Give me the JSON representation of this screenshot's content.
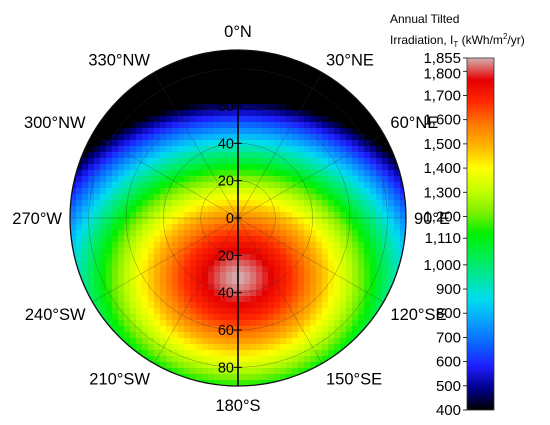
{
  "chart_data": {
    "type": "heatmap",
    "projection": "polar",
    "title": "",
    "colorbar": {
      "title_line1": "Annual Tilted",
      "title_line2_prefix": "Irradiation, I",
      "title_line2_sub": "T",
      "title_line2_mid": " (kWh/m",
      "title_line2_sup": "2",
      "title_line2_suffix": "/yr)",
      "min": 400,
      "max": 1855,
      "tick_labels": [
        "1,855",
        "1,800",
        "1,700",
        "1,600",
        "1,500",
        "1,400",
        "1,300",
        "1,200",
        "1,110",
        "1,000",
        "900",
        "800",
        "700",
        "600",
        "500",
        "400"
      ],
      "tick_values": [
        1855,
        1800,
        1700,
        1600,
        1500,
        1400,
        1300,
        1200,
        1110,
        1000,
        900,
        800,
        700,
        600,
        500,
        400
      ],
      "colors": [
        "#000000",
        "#00008c",
        "#1e1eff",
        "#0a64ff",
        "#0aa0ff",
        "#00dcf0",
        "#00e6a0",
        "#00ee50",
        "#00f000",
        "#7ef000",
        "#c8ff00",
        "#ffff00",
        "#ffb400",
        "#ff7800",
        "#ff2800",
        "#e60000",
        "#d4b0b0"
      ]
    },
    "radial_axis": {
      "tick_values": [
        0,
        20,
        40,
        60,
        80
      ],
      "tick_labels_north": [
        "0",
        "20",
        "40",
        "60",
        "80"
      ],
      "tick_labels_south": [
        "20",
        "40",
        "60",
        "80"
      ],
      "max": 90
    },
    "angular_axis": {
      "labels": [
        {
          "angle": 0,
          "text": "0°N"
        },
        {
          "angle": 30,
          "text": "30°NE"
        },
        {
          "angle": 60,
          "text": "60°NE"
        },
        {
          "angle": 90,
          "text": "90°E"
        },
        {
          "angle": 120,
          "text": "120°SE"
        },
        {
          "angle": 150,
          "text": "150°SE"
        },
        {
          "angle": 180,
          "text": "180°S"
        },
        {
          "angle": 210,
          "text": "210°SW"
        },
        {
          "angle": 240,
          "text": "240°SW"
        },
        {
          "angle": 270,
          "text": "270°W"
        },
        {
          "angle": 300,
          "text": "300°NW"
        },
        {
          "angle": 330,
          "text": "330°NW"
        }
      ]
    },
    "peak": {
      "azimuth": 180,
      "tilt": 32,
      "value": 1855
    },
    "grid": true,
    "legend": "right"
  }
}
